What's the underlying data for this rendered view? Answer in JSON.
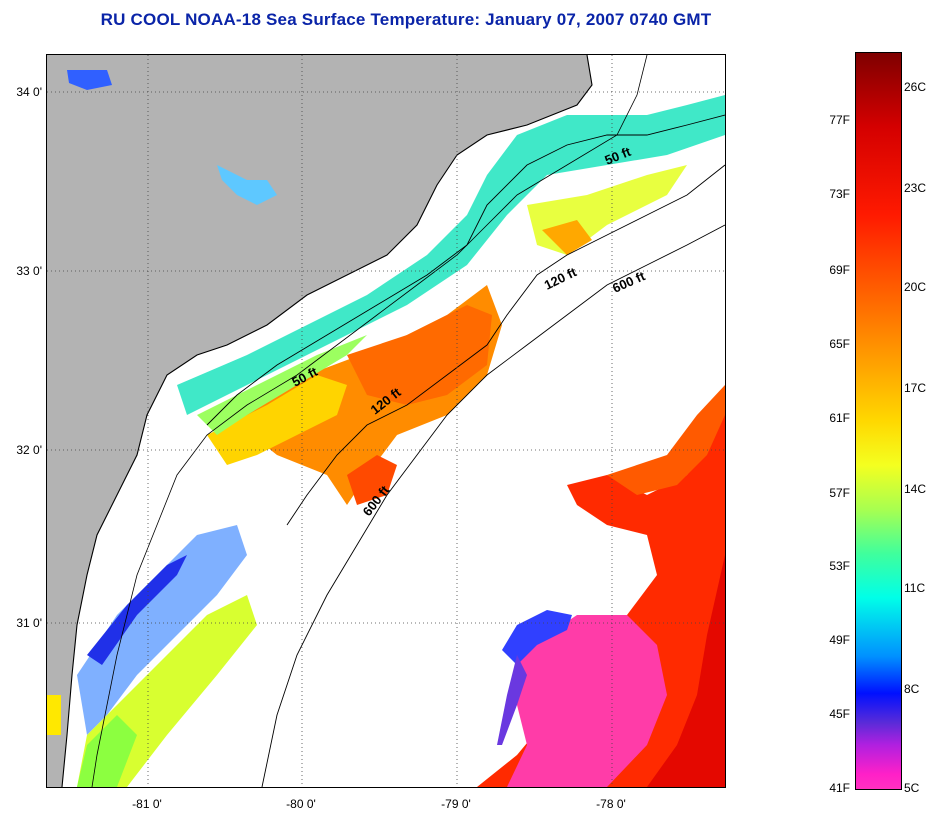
{
  "title": "RU COOL  NOAA-18  Sea Surface Temperature:  January 07, 2007 0740 GMT",
  "map": {
    "lat_ticks": [
      {
        "label": "34 0'",
        "value": 34.0
      },
      {
        "label": "33 0'",
        "value": 33.0
      },
      {
        "label": "32 0'",
        "value": 32.0
      },
      {
        "label": "31 0'",
        "value": 31.0
      }
    ],
    "lon_ticks": [
      {
        "label": "-81 0'",
        "value": -81.0
      },
      {
        "label": "-80 0'",
        "value": -80.0
      },
      {
        "label": "-79 0'",
        "value": -79.0
      },
      {
        "label": "-78 0'",
        "value": -78.0
      }
    ],
    "contour_labels": [
      {
        "text": "50 ft",
        "key": "50a"
      },
      {
        "text": "50 ft",
        "key": "50b"
      },
      {
        "text": "120 ft",
        "key": "120a"
      },
      {
        "text": "120 ft",
        "key": "120b"
      },
      {
        "text": "600 ft",
        "key": "600a"
      },
      {
        "text": "600 ft",
        "key": "600b"
      }
    ],
    "colors": {
      "land": "#b3b3b3",
      "cloud": "#ffffff",
      "coast": "#000000"
    }
  },
  "colorbar": {
    "fahrenheit_labels": [
      "77F",
      "73F",
      "69F",
      "65F",
      "61F",
      "57F",
      "53F",
      "49F",
      "45F",
      "41F"
    ],
    "celsius_labels": [
      "26C",
      "23C",
      "20C",
      "17C",
      "14C",
      "11C",
      "8C",
      "5C"
    ],
    "range_celsius": [
      5,
      27
    ]
  }
}
